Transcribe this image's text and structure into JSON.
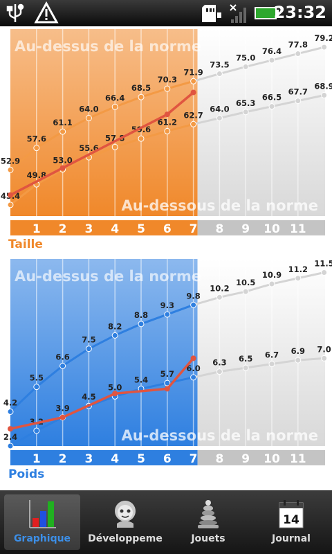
{
  "status_bar": {
    "time": "23:32",
    "icons": [
      "usb-icon",
      "warning-icon",
      "sd-card-icon",
      "no-signal-icon",
      "battery-icon"
    ]
  },
  "tabs": [
    {
      "label": "Graphique",
      "icon": "bar-chart-icon",
      "active": true
    },
    {
      "label": "Développeme",
      "icon": "baby-face-icon",
      "active": false
    },
    {
      "label": "Jouets",
      "icon": "stacking-toy-icon",
      "active": false
    },
    {
      "label": "Journal",
      "icon": "calendar-icon",
      "active": false
    }
  ],
  "calendar_day": "14",
  "chart_data": [
    {
      "type": "line",
      "title": "Taille",
      "theme_color": "#f0882a",
      "line_color": "#f39a45",
      "highlight_until": 7,
      "above_label": "Au-dessus de la norme",
      "below_label": "Au-dessous de la norme",
      "x": [
        0,
        1,
        2,
        3,
        4,
        5,
        6,
        7,
        8,
        9,
        10,
        11,
        12
      ],
      "x_ticks": [
        "1",
        "2",
        "3",
        "4",
        "5",
        "6",
        "7",
        "8",
        "9",
        "10",
        "11"
      ],
      "ylim": [
        43,
        81
      ],
      "series": [
        {
          "role": "upper",
          "values": [
            52.9,
            57.6,
            61.1,
            64.0,
            66.4,
            68.5,
            70.3,
            71.9,
            73.5,
            75.0,
            76.4,
            77.8,
            79.2
          ],
          "labels": [
            "52.9",
            "57.6",
            "61.1",
            "64.0",
            "66.4",
            "68.5",
            "70.3",
            "71.9",
            "73.5",
            "75.0",
            "76.4",
            "77.8",
            "79.2"
          ]
        },
        {
          "role": "lower",
          "values": [
            45.4,
            49.8,
            53.0,
            55.6,
            57.8,
            59.6,
            61.2,
            62.7,
            64.0,
            65.3,
            66.5,
            67.7,
            68.9
          ],
          "labels": [
            "45.4",
            "49.8",
            "53.0",
            "55.6",
            "57.8",
            "59.6",
            "61.2",
            "62.7",
            "64.0",
            "65.3",
            "66.5",
            "67.7",
            "68.9"
          ]
        },
        {
          "role": "child",
          "color": "#e05540",
          "x": [
            0,
            2,
            6,
            7
          ],
          "values": [
            47.5,
            53.3,
            64.8,
            69.5
          ]
        }
      ]
    },
    {
      "type": "line",
      "title": "Poids",
      "theme_color": "#2e7fe0",
      "line_color": "#2e7fe0",
      "highlight_until": 7,
      "above_label": "Au-dessus de la norme",
      "below_label": "Au-dessous de la norme",
      "x": [
        0,
        1,
        2,
        3,
        4,
        5,
        6,
        7,
        8,
        9,
        10,
        11,
        12
      ],
      "x_ticks": [
        "1",
        "2",
        "3",
        "4",
        "5",
        "6",
        "7",
        "8",
        "9",
        "10",
        "11"
      ],
      "ylim": [
        2.4,
        11.7
      ],
      "series": [
        {
          "role": "upper",
          "values": [
            4.2,
            5.5,
            6.6,
            7.5,
            8.2,
            8.8,
            9.3,
            9.8,
            10.2,
            10.5,
            10.9,
            11.2,
            11.5
          ],
          "labels": [
            "4.2",
            "5.5",
            "6.6",
            "7.5",
            "8.2",
            "8.8",
            "9.3",
            "9.8",
            "10.2",
            "10.5",
            "10.9",
            "11.2",
            "11.5"
          ]
        },
        {
          "role": "lower",
          "values": [
            2.4,
            3.2,
            3.9,
            4.5,
            5.0,
            5.4,
            5.7,
            6.0,
            6.3,
            6.5,
            6.7,
            6.9,
            7.0
          ],
          "labels": [
            "2.4",
            "3.2",
            "3.9",
            "4.5",
            "5.0",
            "5.4",
            "5.7",
            "6.0",
            "6.3",
            "6.5",
            "6.7",
            "6.9",
            "7.0"
          ]
        },
        {
          "role": "child",
          "color": "#e05540",
          "x": [
            0,
            2,
            4,
            6,
            7
          ],
          "values": [
            3.3,
            3.9,
            5.15,
            5.4,
            7.0
          ]
        }
      ]
    }
  ]
}
